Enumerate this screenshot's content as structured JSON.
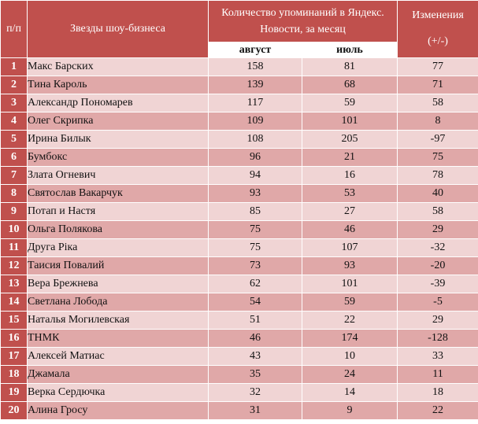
{
  "header": {
    "num": "п/п",
    "name": "Звезды шоу-бизнеса",
    "mentions": "Количество упоминаний в Яндекс. Новости, за месяц",
    "changes": "Изменения",
    "changes_unit": "(+/-)",
    "august": "август",
    "july": "июль"
  },
  "rows": [
    {
      "n": "1",
      "name": "Макс Барских",
      "aug": "158",
      "jul": "81",
      "chg": "77"
    },
    {
      "n": "2",
      "name": "Тина Кароль",
      "aug": "139",
      "jul": "68",
      "chg": "71"
    },
    {
      "n": "3",
      "name": "Александр Пономарев",
      "aug": "117",
      "jul": "59",
      "chg": "58"
    },
    {
      "n": "4",
      "name": "Олег Скрипка",
      "aug": "109",
      "jul": "101",
      "chg": "8"
    },
    {
      "n": "5",
      "name": "Ирина Билык",
      "aug": "108",
      "jul": "205",
      "chg": "-97"
    },
    {
      "n": "6",
      "name": "Бумбокс",
      "aug": "96",
      "jul": "21",
      "chg": "75"
    },
    {
      "n": "7",
      "name": "Злата Огневич",
      "aug": "94",
      "jul": "16",
      "chg": "78"
    },
    {
      "n": "8",
      "name": "Святослав Вакарчук",
      "aug": "93",
      "jul": "53",
      "chg": "40"
    },
    {
      "n": "9",
      "name": "Потап и Настя",
      "aug": "85",
      "jul": "27",
      "chg": "58"
    },
    {
      "n": "10",
      "name": "Ольга Полякова",
      "aug": "75",
      "jul": "46",
      "chg": "29"
    },
    {
      "n": "11",
      "name": "Друга Ріка",
      "aug": "75",
      "jul": "107",
      "chg": "-32"
    },
    {
      "n": "12",
      "name": "Таисия Повалий",
      "aug": "73",
      "jul": "93",
      "chg": "-20"
    },
    {
      "n": "13",
      "name": "Вера Брежнева",
      "aug": "62",
      "jul": "101",
      "chg": "-39"
    },
    {
      "n": "14",
      "name": "Светлана Лобода",
      "aug": "54",
      "jul": "59",
      "chg": "-5"
    },
    {
      "n": "15",
      "name": "Наталья Могилевская",
      "aug": "51",
      "jul": "22",
      "chg": "29"
    },
    {
      "n": "16",
      "name": "ТНМК",
      "aug": "46",
      "jul": "174",
      "chg": "-128"
    },
    {
      "n": "17",
      "name": "Алексей Матиас",
      "aug": "43",
      "jul": "10",
      "chg": "33"
    },
    {
      "n": "18",
      "name": "Джамала",
      "aug": "35",
      "jul": "24",
      "chg": "11"
    },
    {
      "n": "19",
      "name": "Верка Сердючка",
      "aug": "32",
      "jul": "14",
      "chg": "18"
    },
    {
      "n": "20",
      "name": "Алина Гросу",
      "aug": "31",
      "jul": "9",
      "chg": "22"
    }
  ]
}
